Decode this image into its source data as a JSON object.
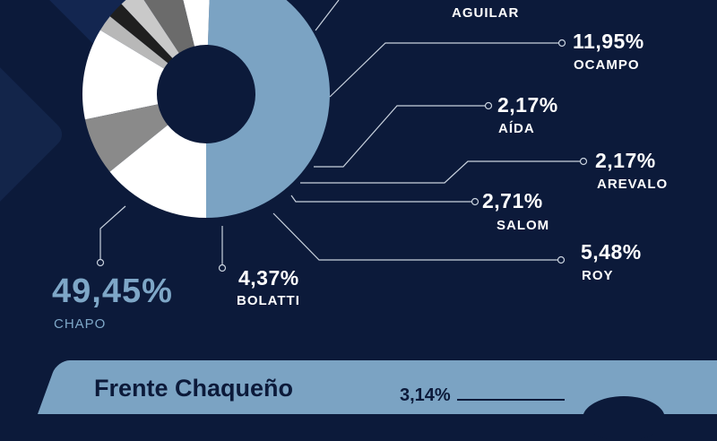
{
  "chart_data": {
    "type": "pie",
    "donut": true,
    "slices": [
      {
        "name": "CHAPO",
        "label": "49,45%",
        "value": 49.45,
        "color": "#7ba3c3"
      },
      {
        "name": "BOLATTI",
        "label": "4,37%",
        "value": 4.37,
        "color": "#ffffff"
      },
      {
        "name": "ROY",
        "label": "5,48%",
        "value": 5.48,
        "color": "#6b6b6b"
      },
      {
        "name": "SALOM",
        "label": "2,71%",
        "value": 2.71,
        "color": "#c9c9c9"
      },
      {
        "name": "AREVALO",
        "label": "2,17%",
        "value": 2.17,
        "color": "#1f1f1f"
      },
      {
        "name": "AÍDA",
        "label": "2,17%",
        "value": 2.17,
        "color": "#b8b8b8"
      },
      {
        "name": "OCAMPO",
        "label": "11,95%",
        "value": 11.95,
        "color": "#ffffff"
      },
      {
        "name": "",
        "label": "",
        "value": 7.5,
        "color": "#8a8a8a"
      },
      {
        "name": "AGUILAR",
        "label": "",
        "value": 14.2,
        "color": "#ffffff"
      }
    ]
  },
  "labels": {
    "aguilar_name": "AGUILAR",
    "ocampo_pct": "11,95%",
    "ocampo_name": "OCAMPO",
    "aida_pct": "2,17%",
    "aida_name": "AÍDA",
    "arevalo_pct": "2,17%",
    "arevalo_name": "AREVALO",
    "salom_pct": "2,71%",
    "salom_name": "SALOM",
    "roy_pct": "5,48%",
    "roy_name": "ROY",
    "bolatti_pct": "4,37%",
    "bolatti_name": "BOLATTI",
    "chapo_pct": "49,45%",
    "chapo_name": "CHAPO"
  },
  "bottom": {
    "title": "Frente Chaqueño",
    "pct": "3,14%"
  },
  "colors": {
    "background": "#0c1a3a",
    "accent": "#7ba3c3",
    "leader": "#c9d2de"
  }
}
